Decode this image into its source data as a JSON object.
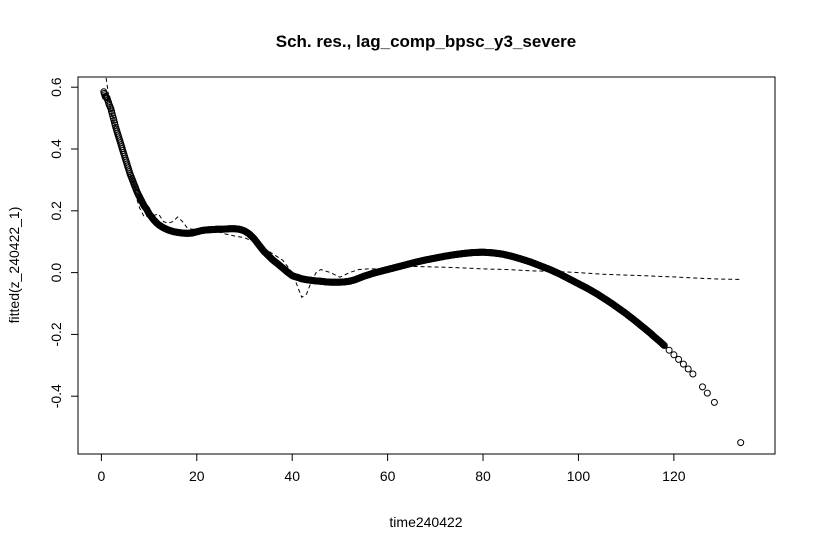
{
  "chart_data": {
    "type": "scatter",
    "title": "Sch. res., lag_comp_bpsc_y3_severe",
    "xlabel": "time240422",
    "ylabel": "fitted(z_240422_1)",
    "xlim": [
      -4.9,
      141.2
    ],
    "ylim": [
      -0.587,
      0.633
    ],
    "x_ticks": [
      0,
      20,
      40,
      60,
      80,
      100,
      120
    ],
    "y_ticks": [
      -0.4,
      -0.2,
      0.0,
      0.2,
      0.4,
      0.6
    ],
    "x_tick_labels": [
      "0",
      "20",
      "40",
      "60",
      "80",
      "100",
      "120"
    ],
    "y_tick_labels": [
      "-0.4",
      "-0.2",
      "0.0",
      "0.2",
      "0.4",
      "0.6"
    ],
    "grid": false,
    "legend": false,
    "series": [
      {
        "kind": "points",
        "x": [
          0.5,
          0.8,
          1.2,
          1.6,
          2.0,
          2.5,
          3,
          3.5,
          4,
          4.5,
          5,
          5.5,
          6,
          6.5,
          7,
          7.5,
          8,
          8.5,
          9,
          9.5,
          10,
          10.5,
          11,
          11.5,
          12,
          13,
          14,
          15,
          16,
          17,
          18,
          19,
          20,
          21,
          22,
          23,
          24,
          25,
          26,
          27,
          28,
          29,
          30,
          31,
          32,
          33,
          34,
          35,
          36,
          37,
          38,
          39,
          40,
          41,
          42,
          43,
          44,
          45,
          46,
          47,
          48,
          49,
          50,
          51,
          52,
          53,
          54,
          55,
          56,
          57,
          58,
          59,
          60,
          62,
          64,
          66,
          68,
          70,
          72,
          74,
          76,
          78,
          80,
          82,
          84,
          86,
          88,
          90,
          92,
          94,
          96,
          98,
          100,
          101,
          102,
          103,
          104,
          105,
          106,
          107,
          108,
          109,
          110,
          111,
          112,
          113,
          114,
          115,
          116,
          117,
          118,
          119,
          120,
          121,
          122,
          123,
          124,
          126,
          127,
          128.5,
          134
        ],
        "y": [
          0.585,
          0.57,
          0.565,
          0.545,
          0.53,
          0.5,
          0.47,
          0.445,
          0.42,
          0.395,
          0.37,
          0.345,
          0.32,
          0.3,
          0.28,
          0.26,
          0.245,
          0.23,
          0.215,
          0.205,
          0.19,
          0.18,
          0.17,
          0.162,
          0.155,
          0.145,
          0.138,
          0.133,
          0.13,
          0.128,
          0.127,
          0.128,
          0.132,
          0.136,
          0.138,
          0.139,
          0.14,
          0.14,
          0.141,
          0.142,
          0.142,
          0.14,
          0.135,
          0.125,
          0.11,
          0.09,
          0.07,
          0.055,
          0.04,
          0.028,
          0.015,
          0.002,
          -0.01,
          -0.015,
          -0.02,
          -0.023,
          -0.025,
          -0.027,
          -0.028,
          -0.03,
          -0.031,
          -0.031,
          -0.031,
          -0.03,
          -0.028,
          -0.024,
          -0.018,
          -0.012,
          -0.007,
          -0.002,
          0.002,
          0.006,
          0.01,
          0.018,
          0.026,
          0.034,
          0.041,
          0.047,
          0.053,
          0.058,
          0.062,
          0.065,
          0.066,
          0.064,
          0.06,
          0.053,
          0.044,
          0.034,
          0.022,
          0.01,
          -0.004,
          -0.02,
          -0.036,
          -0.044,
          -0.052,
          -0.061,
          -0.07,
          -0.08,
          -0.09,
          -0.1,
          -0.111,
          -0.122,
          -0.133,
          -0.145,
          -0.157,
          -0.17,
          -0.182,
          -0.195,
          -0.209,
          -0.222,
          -0.236,
          -0.251,
          -0.266,
          -0.281,
          -0.296,
          -0.312,
          -0.328,
          -0.37,
          -0.39,
          -0.42,
          -0.55
        ]
      },
      {
        "kind": "dashed-line",
        "x": [
          1,
          2,
          3,
          4,
          5,
          6,
          7,
          8,
          9,
          10,
          11,
          12,
          13,
          14,
          15,
          16,
          17,
          18,
          19,
          20,
          22,
          24,
          26,
          28,
          30,
          32,
          34,
          36,
          38,
          40,
          41,
          42,
          43,
          44,
          45,
          46,
          48,
          50,
          52,
          54,
          56,
          58,
          60,
          65,
          70,
          75,
          80,
          85,
          90,
          95,
          100,
          105,
          110,
          115,
          120,
          125,
          130,
          134
        ],
        "y": [
          0.63,
          0.52,
          0.45,
          0.39,
          0.34,
          0.3,
          0.26,
          0.21,
          0.18,
          0.185,
          0.185,
          0.19,
          0.165,
          0.16,
          0.165,
          0.18,
          0.165,
          0.145,
          0.14,
          0.14,
          0.14,
          0.135,
          0.125,
          0.118,
          0.113,
          0.1,
          0.08,
          0.06,
          0.04,
          0.0,
          -0.04,
          -0.08,
          -0.07,
          -0.03,
          0.0,
          0.01,
          0.0,
          -0.015,
          0.0,
          0.01,
          0.012,
          0.012,
          0.018,
          0.02,
          0.018,
          0.016,
          0.012,
          0.01,
          0.006,
          0.004,
          0.0,
          -0.005,
          -0.008,
          -0.011,
          -0.014,
          -0.018,
          -0.021,
          -0.022
        ]
      }
    ]
  }
}
